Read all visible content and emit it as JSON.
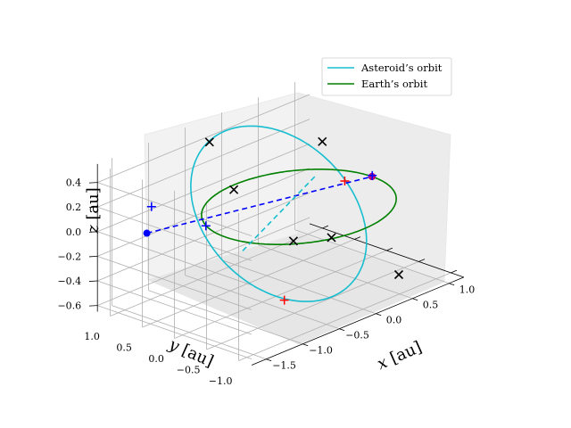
{
  "chart_data": {
    "type": "line",
    "projection": "3d",
    "grid": true,
    "legend_position": "top-right",
    "xlabel": "$x$ [au]",
    "ylabel": "$y$ [au]",
    "zlabel": "$z$ [au]",
    "xlim": [
      -1.7,
      1.2
    ],
    "ylim": [
      -1.2,
      1.2
    ],
    "zlim": [
      -0.65,
      0.55
    ],
    "xticks": [
      "−1.5",
      "−1.0",
      "−0.5",
      "0.0",
      "0.5",
      "1.0"
    ],
    "yticks": [
      "1.0",
      "0.5",
      "0.0",
      "−0.5",
      "−1.0"
    ],
    "zticks": [
      "0.4",
      "0.2",
      "0.0",
      "−0.2",
      "−0.4",
      "−0.6"
    ],
    "series": [
      {
        "name": "Asteroid’s orbit",
        "color": "#17becf",
        "kind": "ellipse",
        "center": [
          -0.25,
          0.03,
          0.0
        ],
        "a": 1.28,
        "b": 0.95,
        "incl_deg": 35,
        "node_deg": 22
      },
      {
        "name": "Earth’s orbit",
        "color": "#008000",
        "kind": "circle",
        "radius": 1.0
      }
    ],
    "lines": [
      {
        "name": "line of nodes",
        "color": "#0000ff",
        "style": "dashed",
        "from": [
          -1.42,
          0.75,
          0.0
        ],
        "to": [
          1.0,
          0.0,
          0.0
        ]
      },
      {
        "name": "minor axis",
        "color": "#17becf",
        "style": "dashed",
        "from": [
          -0.53,
          -0.85,
          0.53
        ],
        "to": [
          0.03,
          0.91,
          -0.53
        ]
      }
    ],
    "markers": [
      {
        "symbol": "dot",
        "color": "#0000ff",
        "pos": [
          -1.42,
          0.75,
          0.0
        ]
      },
      {
        "symbol": "dot",
        "color": "#0000ff",
        "pos": [
          1.0,
          0.0,
          0.0
        ]
      },
      {
        "symbol": "dot",
        "color": "#c40078",
        "pos": [
          1.0,
          0.0,
          0.0
        ]
      },
      {
        "symbol": "plus",
        "color": "#0000ff",
        "pos": [
          -1.4,
          0.7,
          0.22
        ]
      },
      {
        "symbol": "plus",
        "color": "#0000ff",
        "pos": [
          -0.92,
          0.4,
          0.0
        ]
      },
      {
        "symbol": "plus",
        "color": "#0000ff",
        "pos": [
          1.02,
          0.02,
          0.0
        ]
      },
      {
        "symbol": "plus",
        "color": "#ff0000",
        "pos": [
          0.75,
          0.14,
          0.0
        ]
      },
      {
        "symbol": "plus",
        "color": "#ff0000",
        "pos": [
          -0.55,
          -0.4,
          -0.55
        ]
      },
      {
        "symbol": "x",
        "color": "#000000",
        "pos": [
          -0.3,
          1.05,
          0.41
        ]
      },
      {
        "symbol": "x",
        "color": "#000000",
        "pos": [
          0.61,
          0.33,
          0.32
        ]
      },
      {
        "symbol": "x",
        "color": "#000000",
        "pos": [
          -0.45,
          0.5,
          0.16
        ]
      },
      {
        "symbol": "x",
        "color": "#000000",
        "pos": [
          -0.25,
          -0.2,
          -0.18
        ]
      },
      {
        "symbol": "x",
        "color": "#000000",
        "pos": [
          0.05,
          -0.45,
          -0.18
        ]
      },
      {
        "symbol": "x",
        "color": "#000000",
        "pos": [
          0.4,
          -1.1,
          -0.45
        ]
      }
    ],
    "legend": [
      "Asteroid’s orbit",
      "Earth’s orbit"
    ]
  }
}
